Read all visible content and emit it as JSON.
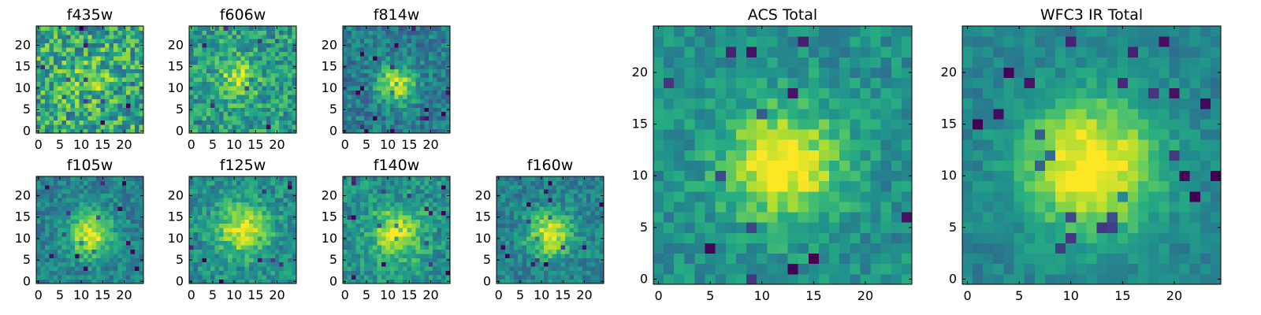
{
  "figure": {
    "description_colormap": "viridis",
    "background": "#ffffff"
  },
  "chart_data": [
    {
      "type": "heatmap",
      "title": "f435w",
      "grid_size": 25,
      "xlim": [
        0,
        24
      ],
      "ylim": [
        0,
        24
      ],
      "xticks": [
        0,
        5,
        10,
        15,
        20
      ],
      "yticks": [
        0,
        5,
        10,
        15,
        20
      ],
      "center": [
        12,
        12
      ],
      "peak_strength": 0.12,
      "sigma": 4.0,
      "noise": 0.55,
      "base": 0.6,
      "colormap": "viridis"
    },
    {
      "type": "heatmap",
      "title": "f606w",
      "grid_size": 25,
      "xlim": [
        0,
        24
      ],
      "ylim": [
        0,
        24
      ],
      "xticks": [
        0,
        5,
        10,
        15,
        20
      ],
      "yticks": [
        0,
        5,
        10,
        15,
        20
      ],
      "center": [
        11,
        12
      ],
      "peak_strength": 0.35,
      "sigma": 3.0,
      "noise": 0.42,
      "base": 0.55,
      "colormap": "viridis"
    },
    {
      "type": "heatmap",
      "title": "f814w",
      "grid_size": 25,
      "xlim": [
        0,
        24
      ],
      "ylim": [
        0,
        24
      ],
      "xticks": [
        0,
        5,
        10,
        15,
        20
      ],
      "yticks": [
        0,
        5,
        10,
        15,
        20
      ],
      "center": [
        12,
        11
      ],
      "peak_strength": 0.55,
      "sigma": 3.0,
      "noise": 0.32,
      "base": 0.42,
      "colormap": "viridis"
    },
    {
      "type": "heatmap",
      "title": "f105w",
      "grid_size": 25,
      "xlim": [
        0,
        24
      ],
      "ylim": [
        0,
        24
      ],
      "xticks": [
        0,
        5,
        10,
        15,
        20
      ],
      "yticks": [
        0,
        5,
        10,
        15,
        20
      ],
      "center": [
        12,
        11
      ],
      "peak_strength": 0.5,
      "sigma": 3.6,
      "noise": 0.28,
      "base": 0.45,
      "colormap": "viridis"
    },
    {
      "type": "heatmap",
      "title": "f125w",
      "grid_size": 25,
      "xlim": [
        0,
        24
      ],
      "ylim": [
        0,
        24
      ],
      "xticks": [
        0,
        5,
        10,
        15,
        20
      ],
      "yticks": [
        0,
        5,
        10,
        15,
        20
      ],
      "center": [
        12,
        12
      ],
      "peak_strength": 0.45,
      "sigma": 4.0,
      "noise": 0.32,
      "base": 0.5,
      "colormap": "viridis"
    },
    {
      "type": "heatmap",
      "title": "f140w",
      "grid_size": 25,
      "xlim": [
        0,
        24
      ],
      "ylim": [
        0,
        24
      ],
      "xticks": [
        0,
        5,
        10,
        15,
        20
      ],
      "yticks": [
        0,
        5,
        10,
        15,
        20
      ],
      "center": [
        12,
        11
      ],
      "peak_strength": 0.42,
      "sigma": 4.2,
      "noise": 0.32,
      "base": 0.5,
      "colormap": "viridis"
    },
    {
      "type": "heatmap",
      "title": "f160w",
      "grid_size": 25,
      "xlim": [
        0,
        24
      ],
      "ylim": [
        0,
        24
      ],
      "xticks": [
        0,
        5,
        10,
        15,
        20
      ],
      "yticks": [
        0,
        5,
        10,
        15,
        20
      ],
      "center": [
        12,
        11
      ],
      "peak_strength": 0.5,
      "sigma": 3.6,
      "noise": 0.28,
      "base": 0.45,
      "colormap": "viridis"
    },
    {
      "type": "heatmap",
      "title": "ACS Total",
      "grid_size": 25,
      "xlim": [
        0,
        24
      ],
      "ylim": [
        0,
        24
      ],
      "xticks": [
        0,
        5,
        10,
        15,
        20
      ],
      "yticks": [
        0,
        5,
        10,
        15,
        20
      ],
      "center": [
        12,
        11
      ],
      "peak_strength": 0.55,
      "sigma": 3.8,
      "noise": 0.26,
      "base": 0.5,
      "colormap": "viridis"
    },
    {
      "type": "heatmap",
      "title": "WFC3 IR Total",
      "grid_size": 25,
      "xlim": [
        0,
        24
      ],
      "ylim": [
        0,
        24
      ],
      "xticks": [
        0,
        5,
        10,
        15,
        20
      ],
      "yticks": [
        0,
        5,
        10,
        15,
        20
      ],
      "center": [
        12,
        11
      ],
      "peak_strength": 0.6,
      "sigma": 4.6,
      "noise": 0.18,
      "base": 0.45,
      "colormap": "viridis"
    }
  ]
}
